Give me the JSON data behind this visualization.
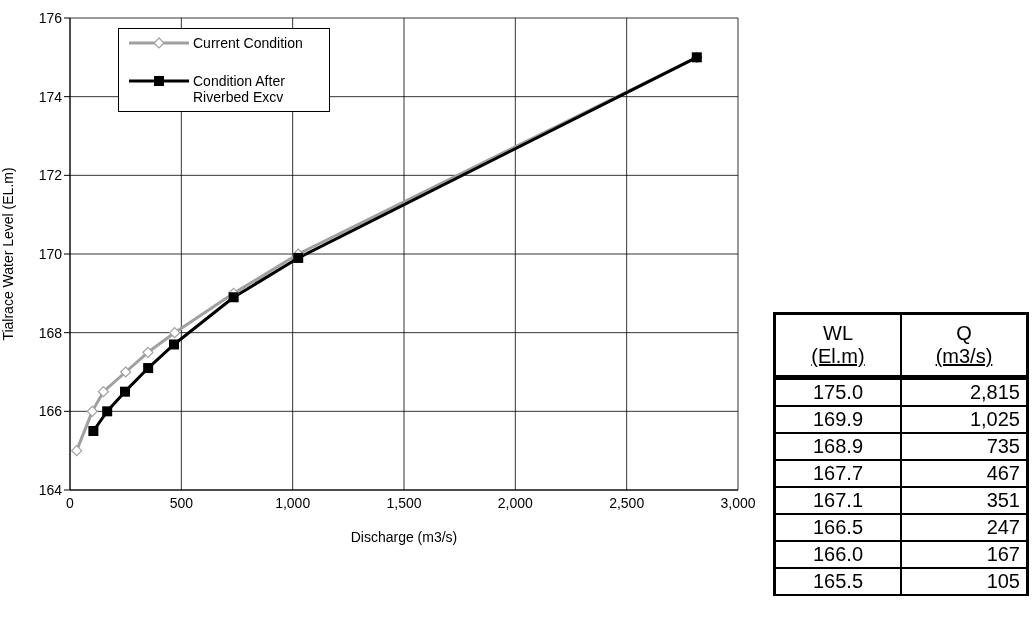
{
  "chart_data": {
    "type": "line",
    "xlabel": "Discharge (m3/s)",
    "ylabel": "Tialrace Water Level (EL.m)",
    "series": [
      {
        "name": "Current Condition",
        "color": "#a0a0a0",
        "marker": "diamond",
        "x": [
          30,
          100,
          150,
          250,
          350,
          470,
          735,
          1025,
          2815
        ],
        "values": [
          165,
          166,
          166.5,
          167,
          167.5,
          168,
          169,
          170,
          175
        ]
      },
      {
        "name": "Condition After Riverbed Excv",
        "color": "#000000",
        "marker": "square",
        "x": [
          2815,
          1025,
          735,
          467,
          351,
          247,
          167,
          105
        ],
        "values": [
          175.0,
          169.9,
          168.9,
          167.7,
          167.1,
          166.5,
          166.0,
          165.5
        ]
      }
    ],
    "xlim": [
      0,
      3000
    ],
    "xticks": [
      0,
      500,
      {
        "value": 1000,
        "label": "1,000"
      },
      {
        "value": 1500,
        "label": "1,500"
      },
      {
        "value": 2000,
        "label": "2,000"
      },
      {
        "value": 2500,
        "label": "2,500"
      },
      {
        "value": 3000,
        "label": "3,000"
      }
    ],
    "ylim": [
      164,
      176
    ],
    "yticks": [
      164,
      166,
      168,
      170,
      172,
      174,
      176
    ],
    "grid": true,
    "legend": "top left",
    "annotations": [
      "WL",
      "(El.m)",
      "Q",
      "(m3/s)",
      "175.0",
      "2,815",
      "169.9",
      "1,025",
      "168.9",
      "735",
      "167.7",
      "467",
      "167.1",
      "351",
      "166.5",
      "247",
      "166.0",
      "167",
      "165.5",
      "105"
    ]
  }
}
